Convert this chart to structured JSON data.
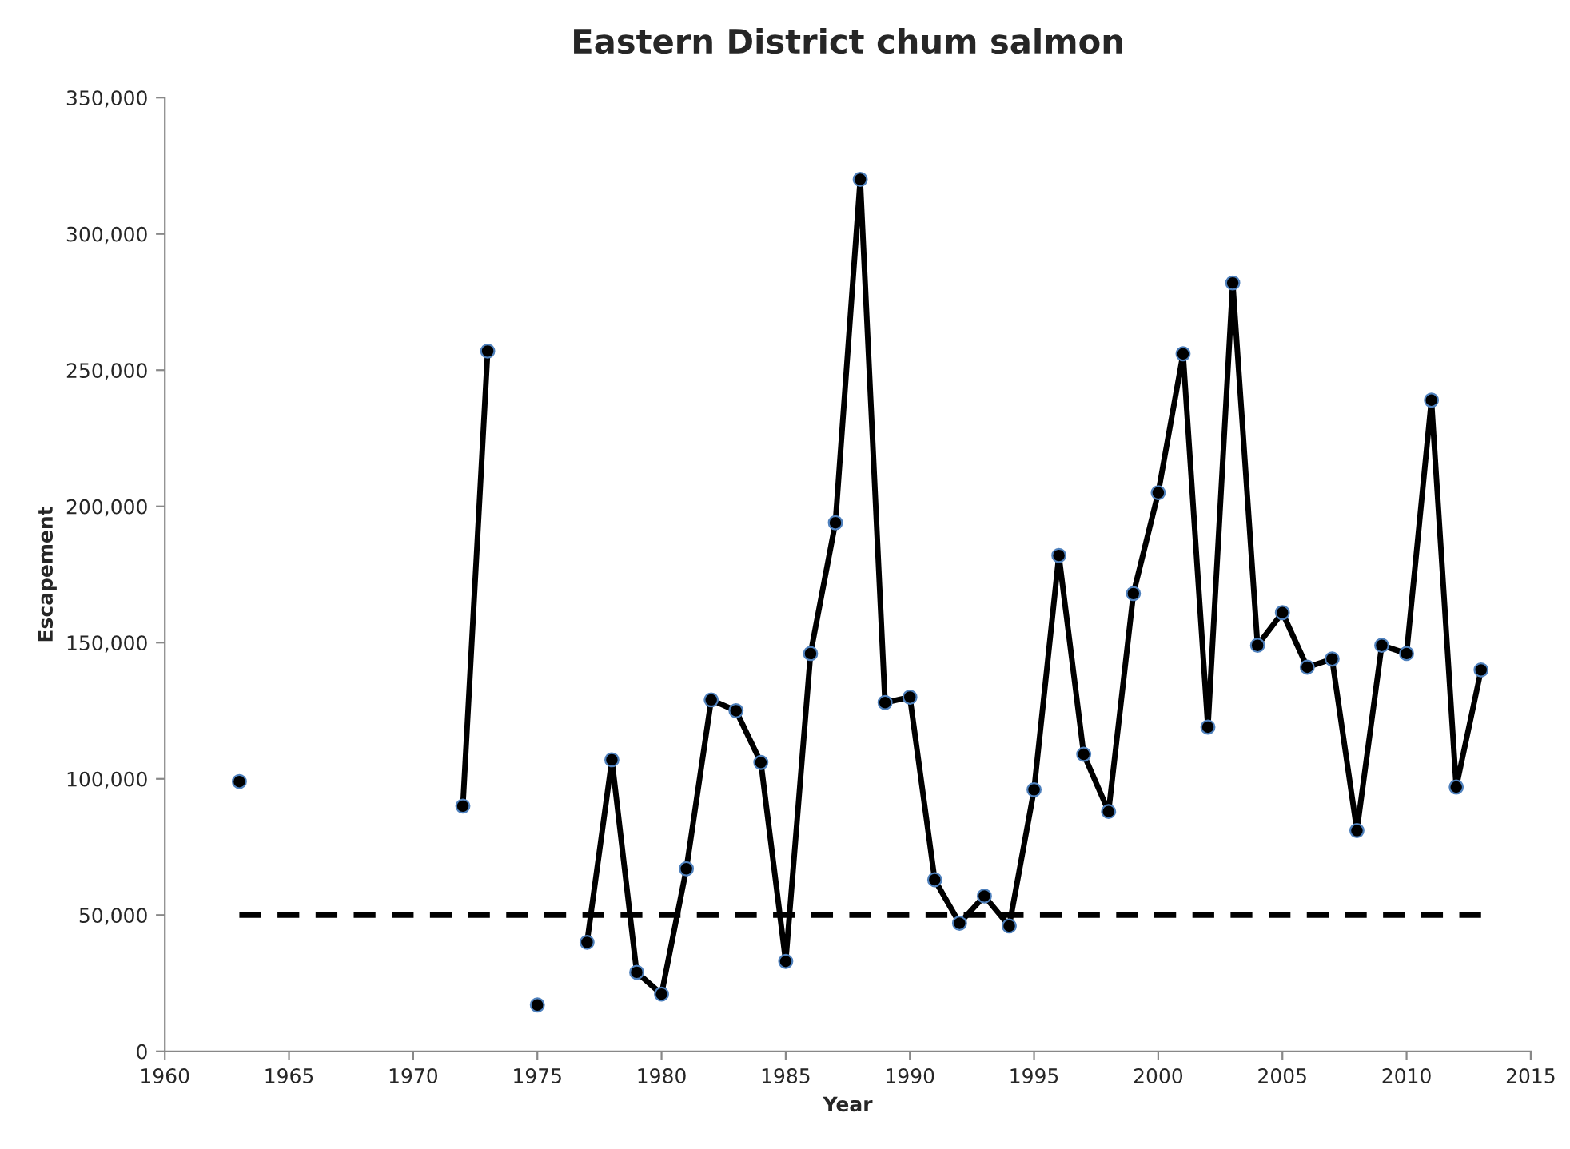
{
  "chart_data": {
    "type": "line",
    "title": "Eastern District chum salmon",
    "xlabel": "Year",
    "ylabel": "Escapement",
    "xlim": [
      1960,
      2015
    ],
    "xticks": [
      1960,
      1965,
      1970,
      1975,
      1980,
      1985,
      1990,
      1995,
      2000,
      2005,
      2010,
      2015
    ],
    "ylim": [
      0,
      350000
    ],
    "yticks": [
      0,
      {
        "value": 50000,
        "label": "50,000"
      },
      {
        "value": 100000,
        "label": "100,000"
      },
      {
        "value": 150000,
        "label": "150,000"
      },
      {
        "value": 200000,
        "label": "200,000"
      },
      {
        "value": 250000,
        "label": "250,000"
      },
      {
        "value": 300000,
        "label": "300,000"
      },
      {
        "value": 350000,
        "label": "350,000"
      }
    ],
    "grid": false,
    "legend": false,
    "series": [
      {
        "color": "#000000",
        "marker": "circle",
        "line_style": "solid",
        "x": [
          1963,
          1964,
          1965,
          1966,
          1967,
          1968,
          1969,
          1970,
          1971,
          1972,
          1973,
          1974,
          1975,
          1976,
          1977,
          1978,
          1979,
          1980,
          1981,
          1982,
          1983,
          1984,
          1985,
          1986,
          1987,
          1988,
          1989,
          1990,
          1991,
          1992,
          1993,
          1994,
          1995,
          1996,
          1997,
          1998,
          1999,
          2000,
          2001,
          2002,
          2003,
          2004,
          2005,
          2006,
          2007,
          2008,
          2009,
          2010,
          2011,
          2012,
          2013
        ],
        "values": [
          99000,
          null,
          null,
          null,
          null,
          null,
          null,
          null,
          null,
          90000,
          257000,
          null,
          17000,
          null,
          40000,
          107000,
          29000,
          21000,
          67000,
          129000,
          125000,
          106000,
          33000,
          146000,
          194000,
          320000,
          128000,
          130000,
          63000,
          47000,
          57000,
          46000,
          96000,
          182000,
          109000,
          88000,
          168000,
          205000,
          256000,
          119000,
          282000,
          149000,
          161000,
          141000,
          144000,
          81000,
          149000,
          146000,
          239000,
          97000,
          140000
        ]
      },
      {
        "color": "#000000",
        "marker": "none",
        "line_style": "dashed",
        "x": [
          1963,
          2013
        ],
        "values": [
          50000,
          50000
        ]
      }
    ]
  }
}
